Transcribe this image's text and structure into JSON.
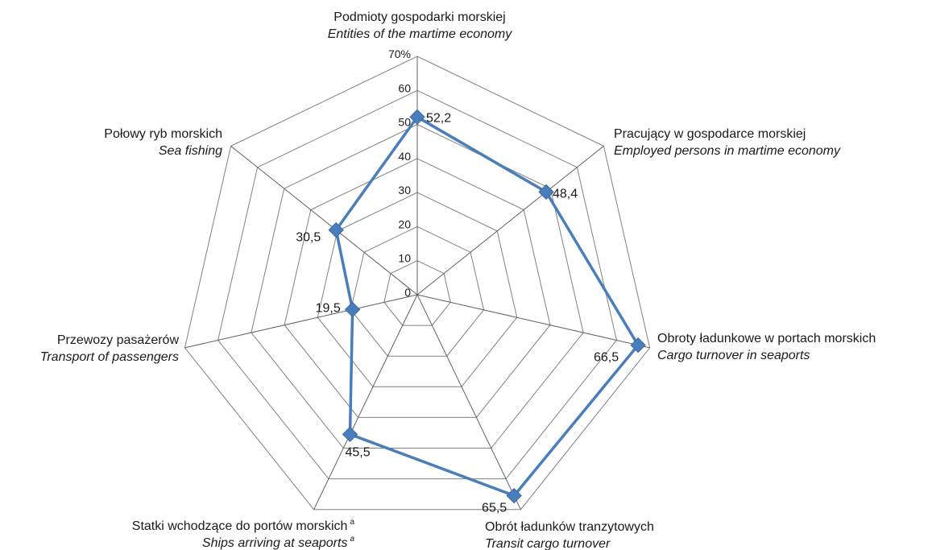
{
  "chart_data": {
    "type": "radar",
    "rmax": 70,
    "tick_step": 10,
    "tick_labels": [
      "0",
      "10",
      "20",
      "30",
      "40",
      "50",
      "60",
      "70%"
    ],
    "grid": true,
    "series_color": "#4a7ebb",
    "grid_color": "#808080",
    "axes": [
      {
        "label_pl": "Podmioty gospodarki morskiej",
        "label_en": "Entities of the martime economy",
        "value": 52.2,
        "value_label": "52,2"
      },
      {
        "label_pl": "Pracujący w gospodarce morskiej",
        "label_en": "Employed persons in martime economy",
        "value": 48.4,
        "value_label": "48,4"
      },
      {
        "label_pl": "Obroty ładunkowe w portach morskich",
        "label_en": "Cargo turnover in seaports",
        "value": 66.5,
        "value_label": "66,5"
      },
      {
        "label_pl": "Obrót ładunków tranzytowych",
        "label_en": "Transit cargo turnover",
        "value": 65.5,
        "value_label": "65,5"
      },
      {
        "label_pl": "Statki wchodzące do portów morskich",
        "label_en": "Ships arriving at seaports",
        "sup": "a",
        "value": 45.5,
        "value_label": "45,5"
      },
      {
        "label_pl": "Przewozy pasażerów",
        "label_en": "Transport of passengers",
        "value": 19.5,
        "value_label": "19,5"
      },
      {
        "label_pl": "Połowy ryb morskich",
        "label_en": "Sea fishing",
        "value": 30.5,
        "value_label": "30,5"
      }
    ]
  }
}
